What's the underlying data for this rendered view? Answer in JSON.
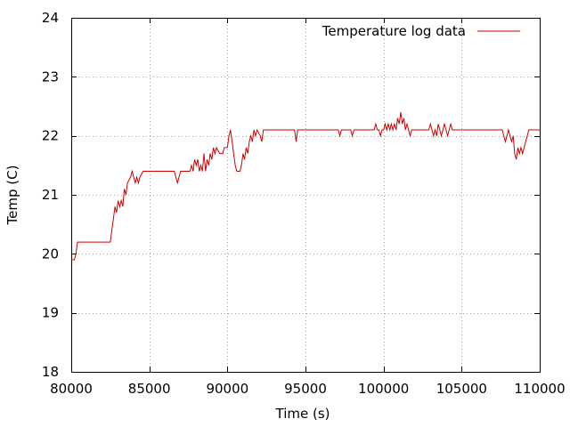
{
  "chart_data": {
    "type": "line",
    "xlabel": "Time (s)",
    "ylabel": "Temp (C)",
    "xlim": [
      80000,
      110000
    ],
    "ylim": [
      18,
      24
    ],
    "x_ticks": [
      "80000",
      "85000",
      "90000",
      "95000",
      "100000",
      "105000",
      "110000"
    ],
    "y_ticks": [
      "18",
      "19",
      "20",
      "21",
      "22",
      "23",
      "24"
    ],
    "grid": true,
    "legend_position": "top-right",
    "series": [
      {
        "name": "Temperature log data",
        "color": "#cc0000",
        "points": [
          [
            80000,
            19.9
          ],
          [
            80200,
            19.9
          ],
          [
            80300,
            20.0
          ],
          [
            80400,
            20.2
          ],
          [
            82500,
            20.2
          ],
          [
            82650,
            20.5
          ],
          [
            82800,
            20.8
          ],
          [
            82900,
            20.7
          ],
          [
            83000,
            20.9
          ],
          [
            83100,
            20.8
          ],
          [
            83200,
            20.9
          ],
          [
            83300,
            20.8
          ],
          [
            83400,
            21.1
          ],
          [
            83500,
            21.0
          ],
          [
            83600,
            21.2
          ],
          [
            83800,
            21.3
          ],
          [
            83900,
            21.4
          ],
          [
            84000,
            21.3
          ],
          [
            84100,
            21.2
          ],
          [
            84200,
            21.3
          ],
          [
            84300,
            21.2
          ],
          [
            84400,
            21.3
          ],
          [
            84600,
            21.4
          ],
          [
            86600,
            21.4
          ],
          [
            86700,
            21.3
          ],
          [
            86800,
            21.2
          ],
          [
            86900,
            21.3
          ],
          [
            87000,
            21.4
          ],
          [
            87600,
            21.4
          ],
          [
            87700,
            21.5
          ],
          [
            87800,
            21.4
          ],
          [
            87900,
            21.6
          ],
          [
            88000,
            21.5
          ],
          [
            88100,
            21.6
          ],
          [
            88200,
            21.4
          ],
          [
            88300,
            21.5
          ],
          [
            88400,
            21.4
          ],
          [
            88500,
            21.7
          ],
          [
            88600,
            21.4
          ],
          [
            88700,
            21.6
          ],
          [
            88800,
            21.5
          ],
          [
            88900,
            21.7
          ],
          [
            89000,
            21.6
          ],
          [
            89100,
            21.8
          ],
          [
            89200,
            21.7
          ],
          [
            89300,
            21.8
          ],
          [
            89500,
            21.7
          ],
          [
            89700,
            21.7
          ],
          [
            89800,
            21.8
          ],
          [
            90000,
            21.8
          ],
          [
            90100,
            22.0
          ],
          [
            90200,
            22.1
          ],
          [
            90300,
            21.9
          ],
          [
            90400,
            21.7
          ],
          [
            90500,
            21.5
          ],
          [
            90600,
            21.4
          ],
          [
            90800,
            21.4
          ],
          [
            90900,
            21.5
          ],
          [
            91000,
            21.7
          ],
          [
            91100,
            21.6
          ],
          [
            91200,
            21.8
          ],
          [
            91300,
            21.7
          ],
          [
            91400,
            21.9
          ],
          [
            91500,
            22.0
          ],
          [
            91600,
            21.9
          ],
          [
            91700,
            22.1
          ],
          [
            91800,
            22.0
          ],
          [
            91900,
            22.1
          ],
          [
            92100,
            22.0
          ],
          [
            92200,
            21.9
          ],
          [
            92300,
            22.1
          ],
          [
            94300,
            22.1
          ],
          [
            94400,
            21.9
          ],
          [
            94500,
            22.1
          ],
          [
            97100,
            22.1
          ],
          [
            97200,
            22.0
          ],
          [
            97300,
            22.1
          ],
          [
            97900,
            22.1
          ],
          [
            98000,
            22.0
          ],
          [
            98100,
            22.1
          ],
          [
            99400,
            22.1
          ],
          [
            99500,
            22.2
          ],
          [
            99600,
            22.1
          ],
          [
            99700,
            22.1
          ],
          [
            99800,
            22.0
          ],
          [
            99900,
            22.1
          ],
          [
            100000,
            22.1
          ],
          [
            100100,
            22.2
          ],
          [
            100200,
            22.1
          ],
          [
            100300,
            22.2
          ],
          [
            100400,
            22.1
          ],
          [
            100500,
            22.2
          ],
          [
            100600,
            22.1
          ],
          [
            100700,
            22.2
          ],
          [
            100800,
            22.1
          ],
          [
            100900,
            22.3
          ],
          [
            101000,
            22.2
          ],
          [
            101100,
            22.4
          ],
          [
            101200,
            22.2
          ],
          [
            101300,
            22.3
          ],
          [
            101400,
            22.1
          ],
          [
            101500,
            22.2
          ],
          [
            101600,
            22.1
          ],
          [
            101700,
            22.0
          ],
          [
            101800,
            22.1
          ],
          [
            102900,
            22.1
          ],
          [
            103000,
            22.2
          ],
          [
            103100,
            22.1
          ],
          [
            103200,
            22.0
          ],
          [
            103300,
            22.1
          ],
          [
            103400,
            22.0
          ],
          [
            103500,
            22.2
          ],
          [
            103600,
            22.1
          ],
          [
            103700,
            22.0
          ],
          [
            103800,
            22.1
          ],
          [
            103900,
            22.2
          ],
          [
            104000,
            22.1
          ],
          [
            104100,
            22.0
          ],
          [
            104200,
            22.1
          ],
          [
            104300,
            22.2
          ],
          [
            104400,
            22.1
          ],
          [
            107600,
            22.1
          ],
          [
            107700,
            22.0
          ],
          [
            107800,
            21.9
          ],
          [
            107900,
            22.0
          ],
          [
            108000,
            22.1
          ],
          [
            108100,
            22.0
          ],
          [
            108200,
            21.9
          ],
          [
            108300,
            22.0
          ],
          [
            108400,
            21.7
          ],
          [
            108500,
            21.6
          ],
          [
            108600,
            21.8
          ],
          [
            108700,
            21.7
          ],
          [
            108800,
            21.8
          ],
          [
            108900,
            21.7
          ],
          [
            109000,
            21.8
          ],
          [
            109100,
            21.9
          ],
          [
            109200,
            22.0
          ],
          [
            109300,
            22.1
          ],
          [
            109900,
            22.1
          ],
          [
            110000,
            22.1
          ]
        ]
      }
    ]
  }
}
